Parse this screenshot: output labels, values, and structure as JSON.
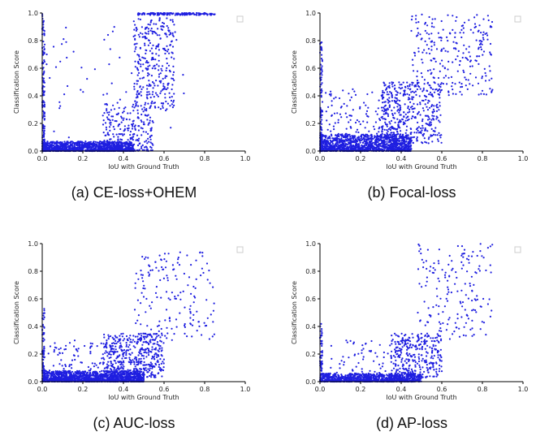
{
  "colors": {
    "points": "#1f1fe0",
    "axis": "#000000",
    "legend_box": "#cccccc"
  },
  "chart_data": [
    {
      "type": "scatter",
      "caption": "(a) CE-loss+OHEM",
      "xlabel": "IoU with Ground Truth",
      "ylabel": "Classification Score",
      "xlim": [
        0,
        1.0
      ],
      "ylim": [
        0,
        1.0
      ],
      "xticks": [
        "0.0",
        "0.2",
        "0.4",
        "0.6",
        "0.8",
        "1.0"
      ],
      "yticks": [
        "0.0",
        "0.2",
        "0.4",
        "0.6",
        "0.8",
        "1.0"
      ],
      "grid": false,
      "legend": "top-right (empty)",
      "series": [
        {
          "clusters": [
            {
              "x": [
                0,
                0.012
              ],
              "y": [
                0,
                1.0
              ],
              "n": 160
            },
            {
              "x": [
                0,
                0.45
              ],
              "y": [
                0,
                0.07
              ],
              "n": 1200
            },
            {
              "x": [
                0.3,
                0.55
              ],
              "y": [
                0,
                0.35
              ],
              "n": 260
            },
            {
              "x": [
                0.45,
                0.65
              ],
              "y": [
                0.3,
                0.97
              ],
              "n": 320
            },
            {
              "x": [
                0.47,
                0.85
              ],
              "y": [
                0.985,
                1.0
              ],
              "n": 160
            },
            {
              "x": [
                0.02,
                0.7
              ],
              "y": [
                0.07,
                0.9
              ],
              "n": 60
            }
          ]
        }
      ]
    },
    {
      "type": "scatter",
      "caption": "(b) Focal-loss",
      "xlabel": "IoU with Ground Truth",
      "ylabel": "Classification Score",
      "xlim": [
        0,
        1.0
      ],
      "ylim": [
        0,
        1.0
      ],
      "xticks": [
        "0.0",
        "0.2",
        "0.4",
        "0.6",
        "0.8",
        "1.0"
      ],
      "yticks": [
        "0.0",
        "0.2",
        "0.4",
        "0.6",
        "0.8",
        "1.0"
      ],
      "grid": false,
      "legend": "top-right (empty)",
      "series": [
        {
          "clusters": [
            {
              "x": [
                0,
                0.012
              ],
              "y": [
                0,
                0.8
              ],
              "n": 120
            },
            {
              "x": [
                0,
                0.45
              ],
              "y": [
                0,
                0.12
              ],
              "n": 1300
            },
            {
              "x": [
                0.3,
                0.6
              ],
              "y": [
                0.05,
                0.5
              ],
              "n": 450
            },
            {
              "x": [
                0.45,
                0.85
              ],
              "y": [
                0.4,
                1.0
              ],
              "n": 260
            },
            {
              "x": [
                0.02,
                0.4
              ],
              "y": [
                0.12,
                0.45
              ],
              "n": 120
            }
          ]
        }
      ]
    },
    {
      "type": "scatter",
      "caption": "(c) AUC-loss",
      "xlabel": "IoU with Ground Truth",
      "ylabel": "Classification Score",
      "xlim": [
        0,
        1.0
      ],
      "ylim": [
        0,
        1.0
      ],
      "xticks": [
        "0.0",
        "0.2",
        "0.4",
        "0.6",
        "0.8",
        "1.0"
      ],
      "yticks": [
        "0.0",
        "0.2",
        "0.4",
        "0.6",
        "0.8",
        "1.0"
      ],
      "grid": false,
      "legend": "top-right (empty)",
      "series": [
        {
          "clusters": [
            {
              "x": [
                0,
                0.012
              ],
              "y": [
                0,
                0.58
              ],
              "n": 90
            },
            {
              "x": [
                0,
                0.5
              ],
              "y": [
                0,
                0.08
              ],
              "n": 1400
            },
            {
              "x": [
                0.3,
                0.6
              ],
              "y": [
                0.03,
                0.35
              ],
              "n": 450
            },
            {
              "x": [
                0.45,
                0.85
              ],
              "y": [
                0.3,
                0.95
              ],
              "n": 170
            },
            {
              "x": [
                0.02,
                0.4
              ],
              "y": [
                0.08,
                0.3
              ],
              "n": 80
            }
          ]
        }
      ]
    },
    {
      "type": "scatter",
      "caption": "(d) AP-loss",
      "xlabel": "IoU with Ground Truth",
      "ylabel": "Classification Score",
      "xlim": [
        0,
        1.0
      ],
      "ylim": [
        0,
        1.0
      ],
      "xticks": [
        "0.0",
        "0.2",
        "0.4",
        "0.6",
        "0.8",
        "1.0"
      ],
      "yticks": [
        "0.0",
        "0.2",
        "0.4",
        "0.6",
        "0.8",
        "1.0"
      ],
      "grid": false,
      "legend": "top-right (empty)",
      "series": [
        {
          "clusters": [
            {
              "x": [
                0,
                0.012
              ],
              "y": [
                0,
                0.42
              ],
              "n": 70
            },
            {
              "x": [
                0,
                0.5
              ],
              "y": [
                0,
                0.06
              ],
              "n": 1000
            },
            {
              "x": [
                0.35,
                0.6
              ],
              "y": [
                0.03,
                0.35
              ],
              "n": 300
            },
            {
              "x": [
                0.48,
                0.85
              ],
              "y": [
                0.3,
                1.0
              ],
              "n": 180
            },
            {
              "x": [
                0.05,
                0.45
              ],
              "y": [
                0.06,
                0.3
              ],
              "n": 70
            }
          ]
        }
      ]
    }
  ]
}
